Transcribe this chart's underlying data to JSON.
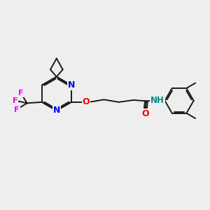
{
  "background_color": "#eeeeee",
  "bond_color": "#1a1a1a",
  "N_color": "#0000ee",
  "O_color": "#ee0000",
  "F_color": "#ee00ee",
  "H_color": "#008888",
  "figsize": [
    3.0,
    3.0
  ],
  "dpi": 100,
  "xlim": [
    0,
    10
  ],
  "ylim": [
    0,
    10
  ]
}
